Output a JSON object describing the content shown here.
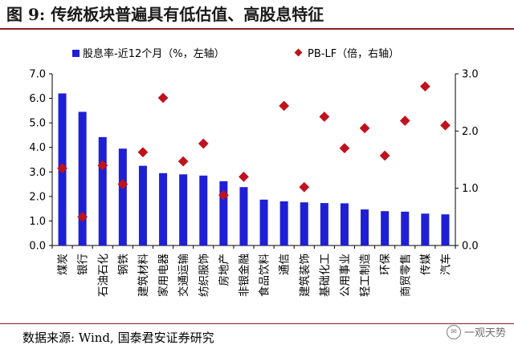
{
  "header": {
    "title": "图 9: 传统板块普遍具有低估值、高股息特征"
  },
  "footer": {
    "source": "数据来源: Wind, 国泰君安证券研究",
    "watermark": "一观天势",
    "watermark_icon": "wechat-icon"
  },
  "chart_data": {
    "type": "bar",
    "categories": [
      "煤炭",
      "银行",
      "石油石化",
      "钢铁",
      "建筑材料",
      "家用电器",
      "交通运输",
      "纺织服饰",
      "房地产",
      "非银金融",
      "食品饮料",
      "通信",
      "建筑装饰",
      "基础化工",
      "公用事业",
      "轻工制造",
      "环保",
      "商贸零售",
      "传媒",
      "汽车"
    ],
    "series": [
      {
        "name": "股息率-近12个月（%，左轴）",
        "axis": "left",
        "kind": "bar",
        "color": "#1f1fd6",
        "values": [
          6.2,
          5.45,
          4.42,
          3.95,
          3.25,
          2.95,
          2.9,
          2.85,
          2.62,
          2.38,
          1.87,
          1.8,
          1.76,
          1.73,
          1.72,
          1.47,
          1.4,
          1.38,
          1.3,
          1.27
        ]
      },
      {
        "name": "PB-LF（倍，右轴）",
        "axis": "right",
        "kind": "marker",
        "color": "#c0121c",
        "values": [
          1.35,
          0.5,
          1.4,
          1.07,
          1.63,
          2.58,
          1.47,
          1.78,
          0.88,
          1.2,
          null,
          2.44,
          1.02,
          2.25,
          1.7,
          2.05,
          1.57,
          2.18,
          2.78,
          2.1
        ]
      }
    ],
    "left_axis": {
      "ylim": [
        0,
        7
      ],
      "ticks": [
        "0.0",
        "1.0",
        "2.0",
        "3.0",
        "4.0",
        "5.0",
        "6.0",
        "7.0"
      ]
    },
    "right_axis": {
      "ylim": [
        0,
        3
      ],
      "ticks": [
        "0.0",
        "1.0",
        "2.0",
        "3.0"
      ]
    },
    "legend": {
      "placement": "top"
    },
    "grid": false
  }
}
